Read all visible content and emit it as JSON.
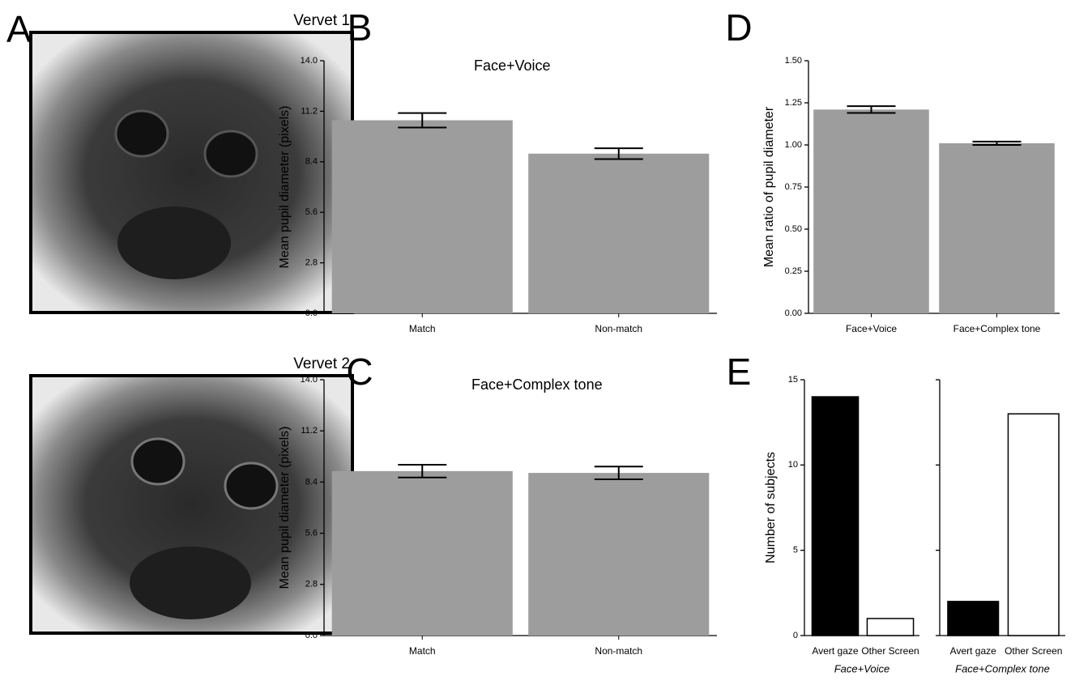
{
  "photos": {
    "letter": "A",
    "labels": [
      "Vervet 1",
      "Vervet 2"
    ]
  },
  "chart_data": [
    {
      "type": "bar",
      "panel": "B",
      "title": "Face+Voice",
      "y_label": "Mean pupil diameter (pixels)",
      "categories": [
        "Match",
        "Non-match"
      ],
      "values": [
        10.7,
        8.85
      ],
      "errors": [
        0.4,
        0.3
      ],
      "color": "#9d9d9d",
      "ylim": [
        0,
        14
      ],
      "yticks": [
        {
          "value": 0,
          "label": "0.0"
        },
        2.8,
        5.6,
        8.4,
        11.2,
        {
          "value": 14,
          "label": "14.0"
        }
      ]
    },
    {
      "type": "bar",
      "panel": "C",
      "title": "Face+Complex tone",
      "y_label": "Mean pupil diameter (pixels)",
      "categories": [
        "Match",
        "Non-match"
      ],
      "values": [
        9.0,
        8.9
      ],
      "errors": [
        0.35,
        0.35
      ],
      "color": "#9d9d9d",
      "ylim": [
        0,
        14
      ],
      "yticks": [
        {
          "value": 0,
          "label": "0.0"
        },
        2.8,
        5.6,
        8.4,
        11.2,
        {
          "value": 14,
          "label": "14.0"
        }
      ]
    },
    {
      "type": "bar",
      "panel": "D",
      "y_label": "Mean ratio of pupil diameter",
      "categories": [
        "Face+Voice",
        "Face+Complex tone"
      ],
      "values": [
        1.21,
        1.01
      ],
      "errors": [
        0.02,
        0.01
      ],
      "color": "#9d9d9d",
      "ylim": [
        0,
        1.5
      ],
      "yticks": [
        {
          "value": 0,
          "label": "0.00"
        },
        {
          "value": 0.25,
          "label": "0.25"
        },
        {
          "value": 0.5,
          "label": "0.50"
        },
        {
          "value": 0.75,
          "label": "0.75"
        },
        {
          "value": 1,
          "label": "1.00"
        },
        {
          "value": 1.25,
          "label": "1.25"
        },
        {
          "value": 1.5,
          "label": "1.50"
        }
      ]
    },
    {
      "type": "grouped-bar",
      "panel": "E",
      "y_label": "Number of subjects",
      "categories": [
        "Avert gaze",
        "Other Screen"
      ],
      "colors": [
        "#000000",
        "#ffffff"
      ],
      "groups": [
        {
          "name": "Face+Voice",
          "values": [
            14,
            1
          ]
        },
        {
          "name": "Face+Complex tone",
          "values": [
            2,
            13
          ]
        }
      ],
      "ylim": [
        0,
        15
      ],
      "yticks": [
        0,
        5,
        10,
        15
      ]
    }
  ]
}
